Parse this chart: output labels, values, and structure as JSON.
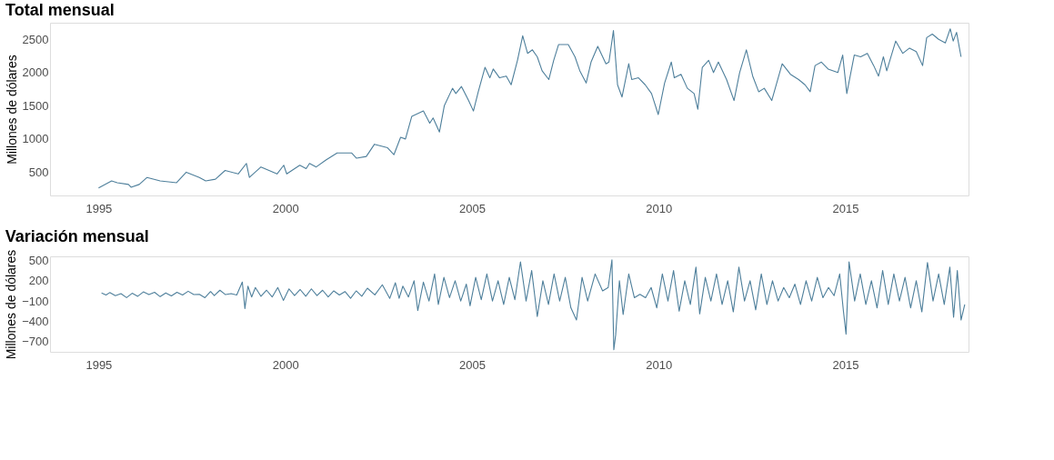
{
  "chart_data": [
    {
      "type": "line",
      "title": "Total mensual",
      "ylabel": "Millones de dólares",
      "grid": false,
      "x": [
        1995.0,
        1995.35,
        1995.5,
        1995.8,
        1995.87,
        1996.09,
        1996.3,
        1996.65,
        1997.09,
        1997.35,
        1997.7,
        1997.87,
        1998.13,
        1998.39,
        1998.74,
        1998.96,
        1999.04,
        1999.35,
        1999.78,
        1999.96,
        2000.04,
        2000.39,
        2000.56,
        2000.65,
        2000.83,
        2001.09,
        2001.39,
        2001.78,
        2001.91,
        2002.17,
        2002.39,
        2002.74,
        2002.91,
        2003.09,
        2003.22,
        2003.39,
        2003.7,
        2003.87,
        2003.96,
        2004.13,
        2004.26,
        2004.48,
        2004.57,
        2004.72,
        2004.91,
        2005.04,
        2005.17,
        2005.35,
        2005.48,
        2005.57,
        2005.74,
        2005.92,
        2006.05,
        2006.22,
        2006.36,
        2006.49,
        2006.62,
        2006.75,
        2006.88,
        2007.06,
        2007.19,
        2007.32,
        2007.58,
        2007.76,
        2007.89,
        2008.06,
        2008.19,
        2008.37,
        2008.59,
        2008.67,
        2008.79,
        2008.9,
        2009.02,
        2009.2,
        2009.28,
        2009.46,
        2009.64,
        2009.81,
        2009.99,
        2010.16,
        2010.34,
        2010.42,
        2010.6,
        2010.77,
        2010.95,
        2011.05,
        2011.17,
        2011.34,
        2011.47,
        2011.6,
        2011.82,
        2012.02,
        2012.17,
        2012.35,
        2012.52,
        2012.68,
        2012.83,
        2013.03,
        2013.31,
        2013.53,
        2013.75,
        2013.92,
        2014.06,
        2014.19,
        2014.36,
        2014.54,
        2014.8,
        2014.93,
        2015.04,
        2015.24,
        2015.41,
        2015.59,
        2015.76,
        2015.89,
        2016.02,
        2016.11,
        2016.35,
        2016.54,
        2016.72,
        2016.9,
        2017.07,
        2017.18,
        2017.33,
        2017.5,
        2017.68,
        2017.81,
        2017.89,
        2017.98,
        2018.1
      ],
      "series": [
        {
          "color": "#4e7f9b",
          "values": [
            263,
            368,
            342,
            316,
            274,
            316,
            421,
            368,
            342,
            500,
            421,
            368,
            395,
            526,
            474,
            632,
            421,
            579,
            474,
            605,
            474,
            605,
            553,
            632,
            579,
            684,
            789,
            789,
            711,
            737,
            921,
            868,
            763,
            1026,
            1000,
            1342,
            1421,
            1237,
            1316,
            1105,
            1500,
            1763,
            1684,
            1790,
            1579,
            1421,
            1711,
            2079,
            1921,
            2053,
            1921,
            1947,
            1816,
            2184,
            2553,
            2289,
            2342,
            2237,
            2026,
            1895,
            2184,
            2421,
            2421,
            2237,
            2026,
            1842,
            2158,
            2395,
            2132,
            2158,
            2632,
            1816,
            1632,
            2132,
            1895,
            1921,
            1816,
            1684,
            1368,
            1842,
            2158,
            1921,
            1974,
            1763,
            1684,
            1447,
            2079,
            2184,
            2000,
            2158,
            1895,
            1579,
            2000,
            2342,
            1947,
            1711,
            1763,
            1579,
            2132,
            1974,
            1895,
            1816,
            1711,
            2105,
            2158,
            2053,
            2000,
            2263,
            1684,
            2263,
            2237,
            2289,
            2105,
            1947,
            2237,
            2026,
            2474,
            2289,
            2368,
            2316,
            2105,
            2526,
            2579,
            2500,
            2447,
            2658,
            2474,
            2605,
            2237
          ]
        }
      ],
      "xlim": [
        1993.7,
        2018.3
      ],
      "xticks": [
        1995,
        2000,
        2005,
        2010,
        2015
      ],
      "ylim": [
        150,
        2750
      ],
      "yticks": [
        500,
        1000,
        1500,
        2000,
        2500
      ]
    },
    {
      "type": "line",
      "title": "Variación mensual",
      "ylabel": "Millones de dólares",
      "grid": false,
      "x": [
        1995.08,
        1995.2,
        1995.3,
        1995.45,
        1995.6,
        1995.75,
        1995.9,
        1996.05,
        1996.2,
        1996.35,
        1996.5,
        1996.65,
        1996.8,
        1996.95,
        1997.1,
        1997.25,
        1997.4,
        1997.55,
        1997.7,
        1997.85,
        1998.0,
        1998.1,
        1998.25,
        1998.4,
        1998.55,
        1998.7,
        1998.85,
        1998.92,
        1999.0,
        1999.1,
        1999.2,
        1999.35,
        1999.5,
        1999.65,
        1999.8,
        1999.95,
        2000.1,
        2000.25,
        2000.4,
        2000.55,
        2000.7,
        2000.85,
        2001.0,
        2001.15,
        2001.3,
        2001.45,
        2001.6,
        2001.75,
        2001.9,
        2002.05,
        2002.2,
        2002.4,
        2002.6,
        2002.8,
        2002.95,
        2003.05,
        2003.15,
        2003.3,
        2003.45,
        2003.55,
        2003.7,
        2003.85,
        2004.0,
        2004.1,
        2004.25,
        2004.4,
        2004.55,
        2004.7,
        2004.85,
        2004.95,
        2005.1,
        2005.25,
        2005.4,
        2005.55,
        2005.7,
        2005.85,
        2006.0,
        2006.15,
        2006.3,
        2006.45,
        2006.6,
        2006.75,
        2006.9,
        2007.05,
        2007.2,
        2007.35,
        2007.5,
        2007.65,
        2007.8,
        2007.95,
        2008.1,
        2008.3,
        2008.5,
        2008.65,
        2008.75,
        2008.8,
        2008.85,
        2008.95,
        2009.05,
        2009.2,
        2009.35,
        2009.5,
        2009.65,
        2009.8,
        2009.95,
        2010.1,
        2010.25,
        2010.4,
        2010.55,
        2010.7,
        2010.85,
        2011.0,
        2011.1,
        2011.25,
        2011.4,
        2011.55,
        2011.7,
        2011.85,
        2012.0,
        2012.15,
        2012.3,
        2012.45,
        2012.6,
        2012.75,
        2012.9,
        2013.05,
        2013.2,
        2013.35,
        2013.5,
        2013.65,
        2013.8,
        2013.95,
        2014.1,
        2014.25,
        2014.4,
        2014.55,
        2014.7,
        2014.85,
        2014.95,
        2015.02,
        2015.1,
        2015.25,
        2015.4,
        2015.55,
        2015.7,
        2015.85,
        2016.0,
        2016.15,
        2016.3,
        2016.45,
        2016.6,
        2016.75,
        2016.9,
        2017.05,
        2017.2,
        2017.35,
        2017.5,
        2017.65,
        2017.8,
        2017.9,
        2018.0,
        2018.1,
        2018.2
      ],
      "series": [
        {
          "color": "#4e7f9b",
          "values": [
            20,
            -10,
            25,
            -20,
            10,
            -50,
            15,
            -30,
            35,
            -5,
            30,
            -35,
            20,
            -25,
            30,
            -10,
            45,
            -5,
            0,
            -50,
            40,
            -20,
            60,
            -5,
            10,
            -10,
            180,
            -210,
            120,
            -40,
            100,
            -30,
            60,
            -40,
            100,
            -90,
            80,
            -20,
            70,
            -30,
            80,
            -20,
            60,
            -40,
            50,
            -10,
            40,
            -60,
            50,
            -30,
            90,
            -10,
            140,
            -60,
            170,
            -60,
            120,
            -40,
            200,
            -240,
            180,
            -100,
            300,
            -150,
            250,
            -50,
            200,
            -100,
            150,
            -170,
            250,
            -80,
            300,
            -100,
            200,
            -150,
            250,
            -80,
            480,
            -100,
            350,
            -330,
            200,
            -150,
            300,
            -100,
            250,
            -200,
            -380,
            250,
            -100,
            300,
            50,
            100,
            510,
            -820,
            -600,
            200,
            -300,
            300,
            -50,
            0,
            -50,
            100,
            -200,
            300,
            -100,
            350,
            -250,
            200,
            -150,
            400,
            -290,
            250,
            -100,
            300,
            -150,
            200,
            -260,
            400,
            -100,
            200,
            -230,
            300,
            -150,
            200,
            -100,
            100,
            -50,
            150,
            -150,
            200,
            -100,
            250,
            -50,
            100,
            -20,
            300,
            -250,
            -590,
            480,
            -100,
            300,
            -150,
            200,
            -200,
            350,
            -150,
            300,
            -100,
            250,
            -200,
            200,
            -260,
            470,
            -100,
            300,
            -150,
            400,
            -340,
            350,
            -380,
            -150
          ]
        }
      ],
      "xlim": [
        1993.7,
        2018.3
      ],
      "xticks": [
        1995,
        2000,
        2005,
        2010,
        2015
      ],
      "ylim": [
        -850,
        560
      ],
      "yticks": [
        -700,
        -400,
        -100,
        200,
        500
      ]
    }
  ]
}
